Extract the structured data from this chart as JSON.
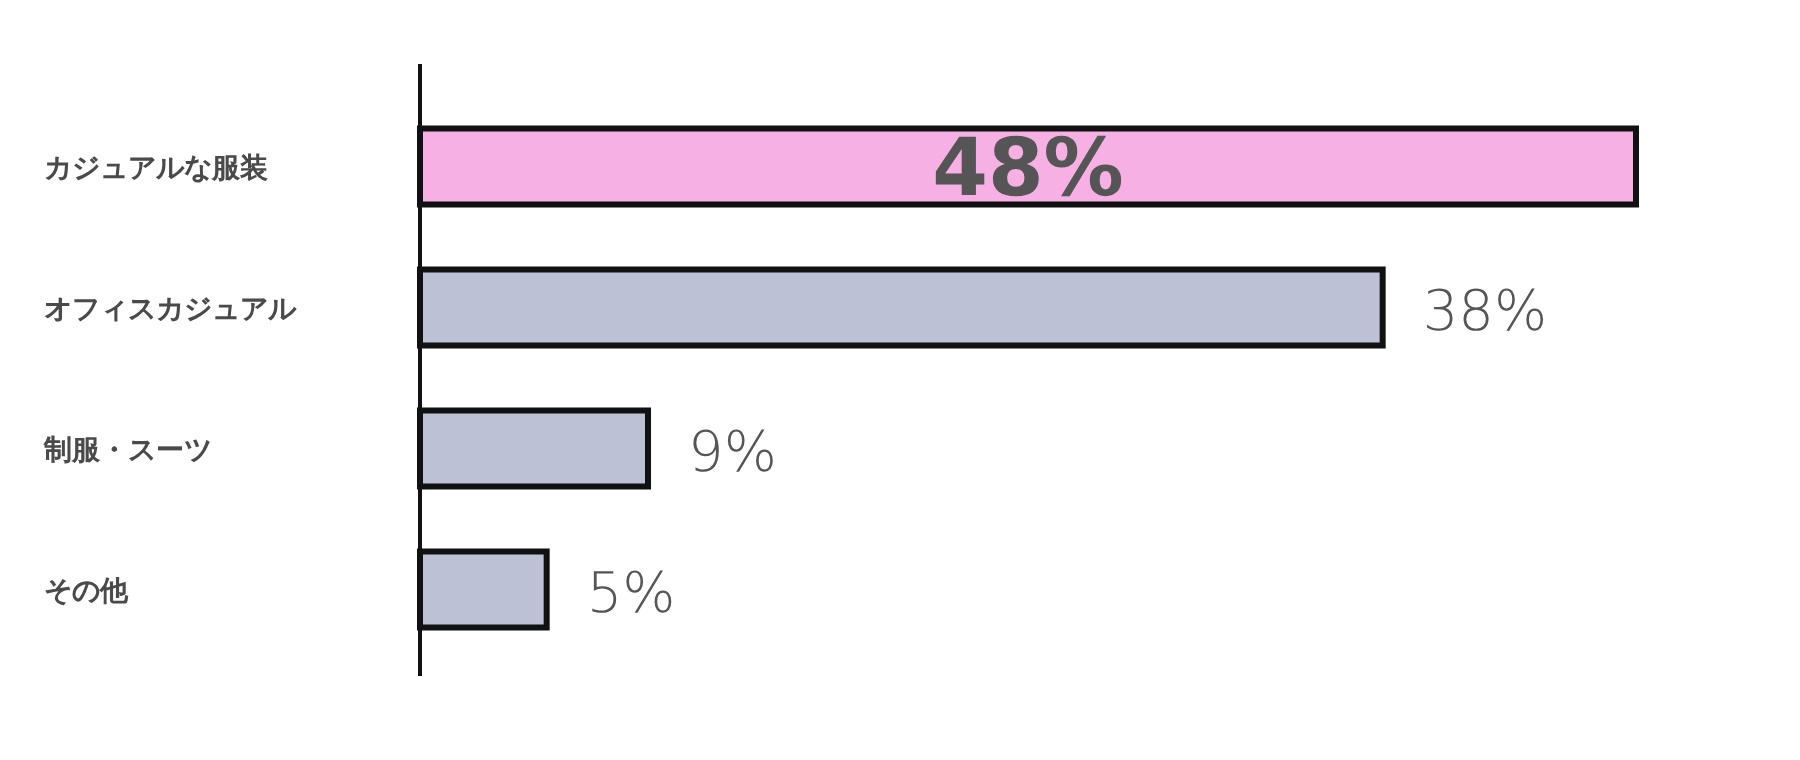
{
  "chart_data": {
    "type": "bar",
    "orientation": "horizontal",
    "categories": [
      "カジュアルな服装",
      "オフィスカジュアル",
      "制服・スーツ",
      "その他"
    ],
    "values": [
      48,
      38,
      9,
      5
    ],
    "colors": [
      "#f7b0e4",
      "#bcc1d6",
      "#bcc1d6",
      "#bcc1d6"
    ],
    "value_labels": [
      "48%",
      "38%",
      "9%",
      "5%"
    ]
  }
}
